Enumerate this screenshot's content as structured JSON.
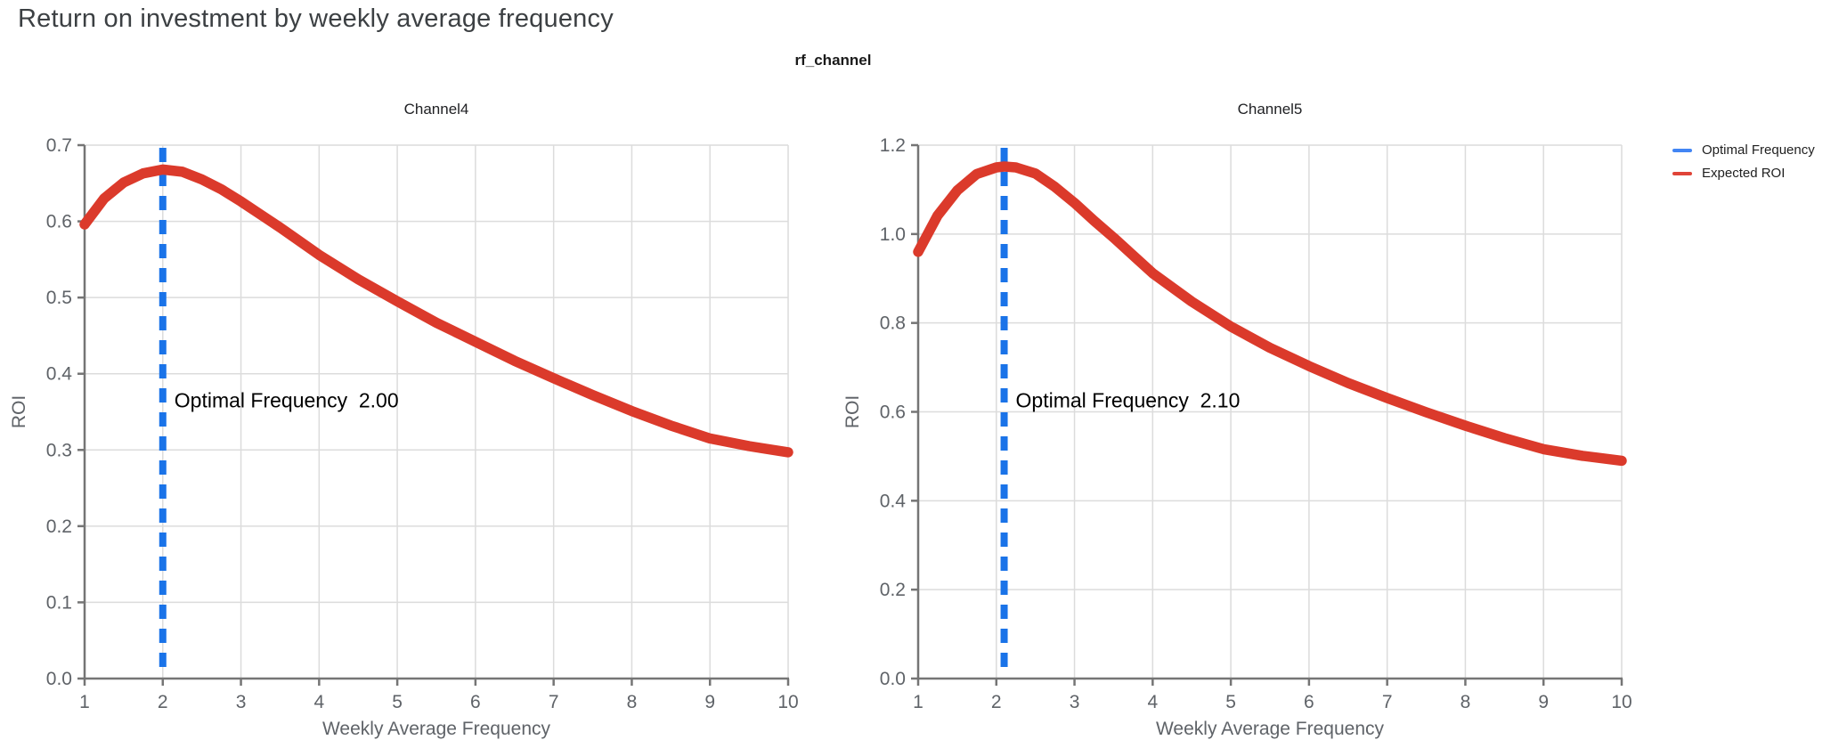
{
  "page": {
    "title": "Return on investment by weekly average frequency",
    "facet_title": "rf_channel"
  },
  "legend": {
    "position": "top-right-outside",
    "items": [
      {
        "label": "Optimal Frequency",
        "color": "#4285f4"
      },
      {
        "label": "Expected ROI",
        "color": "#e04438"
      }
    ]
  },
  "colors": {
    "optimal": "#1a73e8",
    "roi": "#db3a2b",
    "grid": "#dcdcdc",
    "axis": "#757575",
    "tick_label": "#5f6368",
    "annotation": "#000000",
    "title": "#3c4043"
  },
  "chart_data": [
    {
      "type": "line",
      "title": "Channel4",
      "xlabel": "Weekly Average Frequency",
      "ylabel": "ROI",
      "x_domain": [
        1,
        10
      ],
      "y_domain": [
        0.0,
        0.7
      ],
      "x_ticks": [
        1,
        2,
        3,
        4,
        5,
        6,
        7,
        8,
        9,
        10
      ],
      "y_ticks": [
        0.0,
        0.1,
        0.2,
        0.3,
        0.4,
        0.5,
        0.6,
        0.7
      ],
      "grid": true,
      "optimal_frequency": 2.0,
      "annotation": {
        "label": "Optimal Frequency",
        "value": "2.00"
      },
      "series": [
        {
          "name": "Expected ROI",
          "x": [
            1,
            1.25,
            1.5,
            1.75,
            2,
            2.25,
            2.5,
            2.75,
            3,
            3.25,
            3.5,
            4,
            4.5,
            5,
            5.5,
            6,
            6.5,
            7,
            7.5,
            8,
            8.5,
            9,
            9.5,
            10
          ],
          "y": [
            0.596,
            0.63,
            0.651,
            0.663,
            0.668,
            0.665,
            0.655,
            0.642,
            0.626,
            0.609,
            0.592,
            0.556,
            0.524,
            0.495,
            0.467,
            0.442,
            0.417,
            0.394,
            0.372,
            0.351,
            0.332,
            0.315,
            0.305,
            0.297
          ]
        }
      ],
      "key_points": {
        "roi_at_1": 0.6,
        "peak_roi": 0.67,
        "roi_at_10": 0.3
      }
    },
    {
      "type": "line",
      "title": "Channel5",
      "xlabel": "Weekly Average Frequency",
      "ylabel": "ROI",
      "x_domain": [
        1,
        10
      ],
      "y_domain": [
        0.0,
        1.2
      ],
      "x_ticks": [
        1,
        2,
        3,
        4,
        5,
        6,
        7,
        8,
        9,
        10
      ],
      "y_ticks": [
        0.0,
        0.2,
        0.4,
        0.6,
        0.8,
        1.0,
        1.2
      ],
      "grid": true,
      "optimal_frequency": 2.1,
      "annotation": {
        "label": "Optimal Frequency",
        "value": "2.10"
      },
      "series": [
        {
          "name": "Expected ROI",
          "x": [
            1,
            1.25,
            1.5,
            1.75,
            2,
            2.1,
            2.25,
            2.5,
            2.75,
            3,
            3.25,
            3.5,
            4,
            4.5,
            5,
            5.5,
            6,
            6.5,
            7,
            7.5,
            8,
            8.5,
            9,
            9.5,
            10
          ],
          "y": [
            0.96,
            1.042,
            1.098,
            1.135,
            1.15,
            1.152,
            1.15,
            1.136,
            1.106,
            1.07,
            1.03,
            0.992,
            0.912,
            0.848,
            0.792,
            0.744,
            0.703,
            0.665,
            0.631,
            0.599,
            0.569,
            0.541,
            0.516,
            0.501,
            0.49
          ]
        }
      ],
      "key_points": {
        "roi_at_1": 0.96,
        "peak_roi": 1.15,
        "roi_at_10": 0.49
      }
    }
  ]
}
